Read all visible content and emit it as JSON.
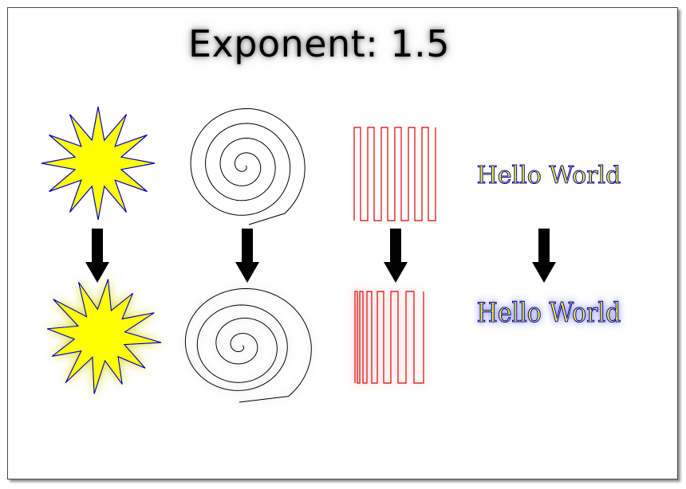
{
  "title": "Exponent: 1.5",
  "hello_top": "Hello World",
  "hello_bottom": "Hello World",
  "colors": {
    "star_fill": "#ffff00",
    "star_stroke": "#0000cc",
    "spiral_stroke": "#000000",
    "square_wave_stroke": "#dd0000",
    "arrow": "#000000",
    "text_fill": "#ffff00",
    "text_stroke": "#0000cc"
  },
  "icons": [
    "star-icon",
    "spiral-icon",
    "square-wave-icon",
    "down-arrow-icon"
  ]
}
